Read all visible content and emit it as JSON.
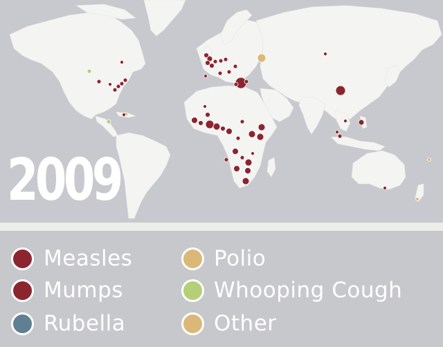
{
  "year": "2009",
  "colors": {
    "measles": "#8b2630",
    "mumps": "#8b2630",
    "rubella": "#5f7f93",
    "polio": "#dcb878",
    "whooping_cough": "#b4cf78",
    "other": "#dcb878",
    "land": "#f4f4f2",
    "ocean": "#c8c9ce"
  },
  "legend": [
    {
      "label": "Measles",
      "color": "#8b2630",
      "icon": "measles-swatch"
    },
    {
      "label": "Mumps",
      "color": "#8b2630",
      "icon": "mumps-swatch"
    },
    {
      "label": "Rubella",
      "color": "#5f7f93",
      "icon": "rubella-swatch"
    },
    {
      "label": "Polio",
      "color": "#dcb878",
      "icon": "polio-swatch"
    },
    {
      "label": "Whooping Cough",
      "color": "#b4cf78",
      "icon": "whooping-cough-swatch"
    },
    {
      "label": "Other",
      "color": "#dcb878",
      "icon": "other-swatch"
    }
  ]
}
